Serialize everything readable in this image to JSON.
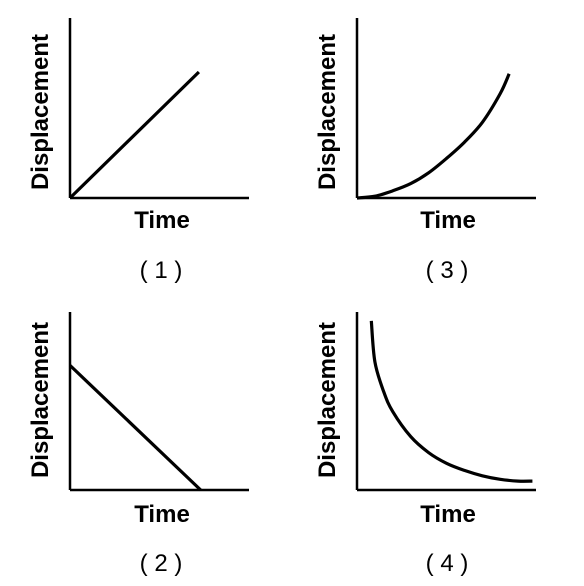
{
  "chart_data": [
    {
      "type": "line",
      "label": "( 1 )",
      "xlabel": "Time",
      "ylabel": "Displacement",
      "xlim": [
        0,
        1
      ],
      "ylim": [
        0,
        1
      ],
      "series": [
        {
          "x": [
            0,
            0.72
          ],
          "y": [
            0,
            0.7
          ]
        }
      ]
    },
    {
      "type": "line",
      "label": "( 2 )",
      "xlabel": "Time",
      "ylabel": "Displacement",
      "xlim": [
        0,
        1
      ],
      "ylim": [
        0,
        1
      ],
      "series": [
        {
          "x": [
            0,
            0.73
          ],
          "y": [
            0.7,
            0
          ]
        }
      ]
    },
    {
      "type": "line",
      "label": "( 3 )",
      "xlabel": "Time",
      "ylabel": "Displacement",
      "xlim": [
        0,
        1
      ],
      "ylim": [
        0,
        1
      ],
      "series": [
        {
          "x": [
            0,
            0.1,
            0.2,
            0.3,
            0.4,
            0.5,
            0.6,
            0.7,
            0.8,
            0.85
          ],
          "y": [
            0,
            0.01,
            0.04,
            0.08,
            0.14,
            0.22,
            0.31,
            0.42,
            0.58,
            0.69
          ]
        }
      ]
    },
    {
      "type": "line",
      "label": "( 4 )",
      "xlabel": "Time",
      "ylabel": "Displacement",
      "xlim": [
        0,
        1
      ],
      "ylim": [
        0,
        1
      ],
      "series": [
        {
          "x": [
            0.08,
            0.1,
            0.15,
            0.2,
            0.3,
            0.4,
            0.5,
            0.6,
            0.7,
            0.8,
            0.9,
            0.98
          ],
          "y": [
            0.95,
            0.72,
            0.55,
            0.44,
            0.3,
            0.21,
            0.15,
            0.11,
            0.08,
            0.06,
            0.05,
            0.05
          ]
        }
      ]
    }
  ]
}
